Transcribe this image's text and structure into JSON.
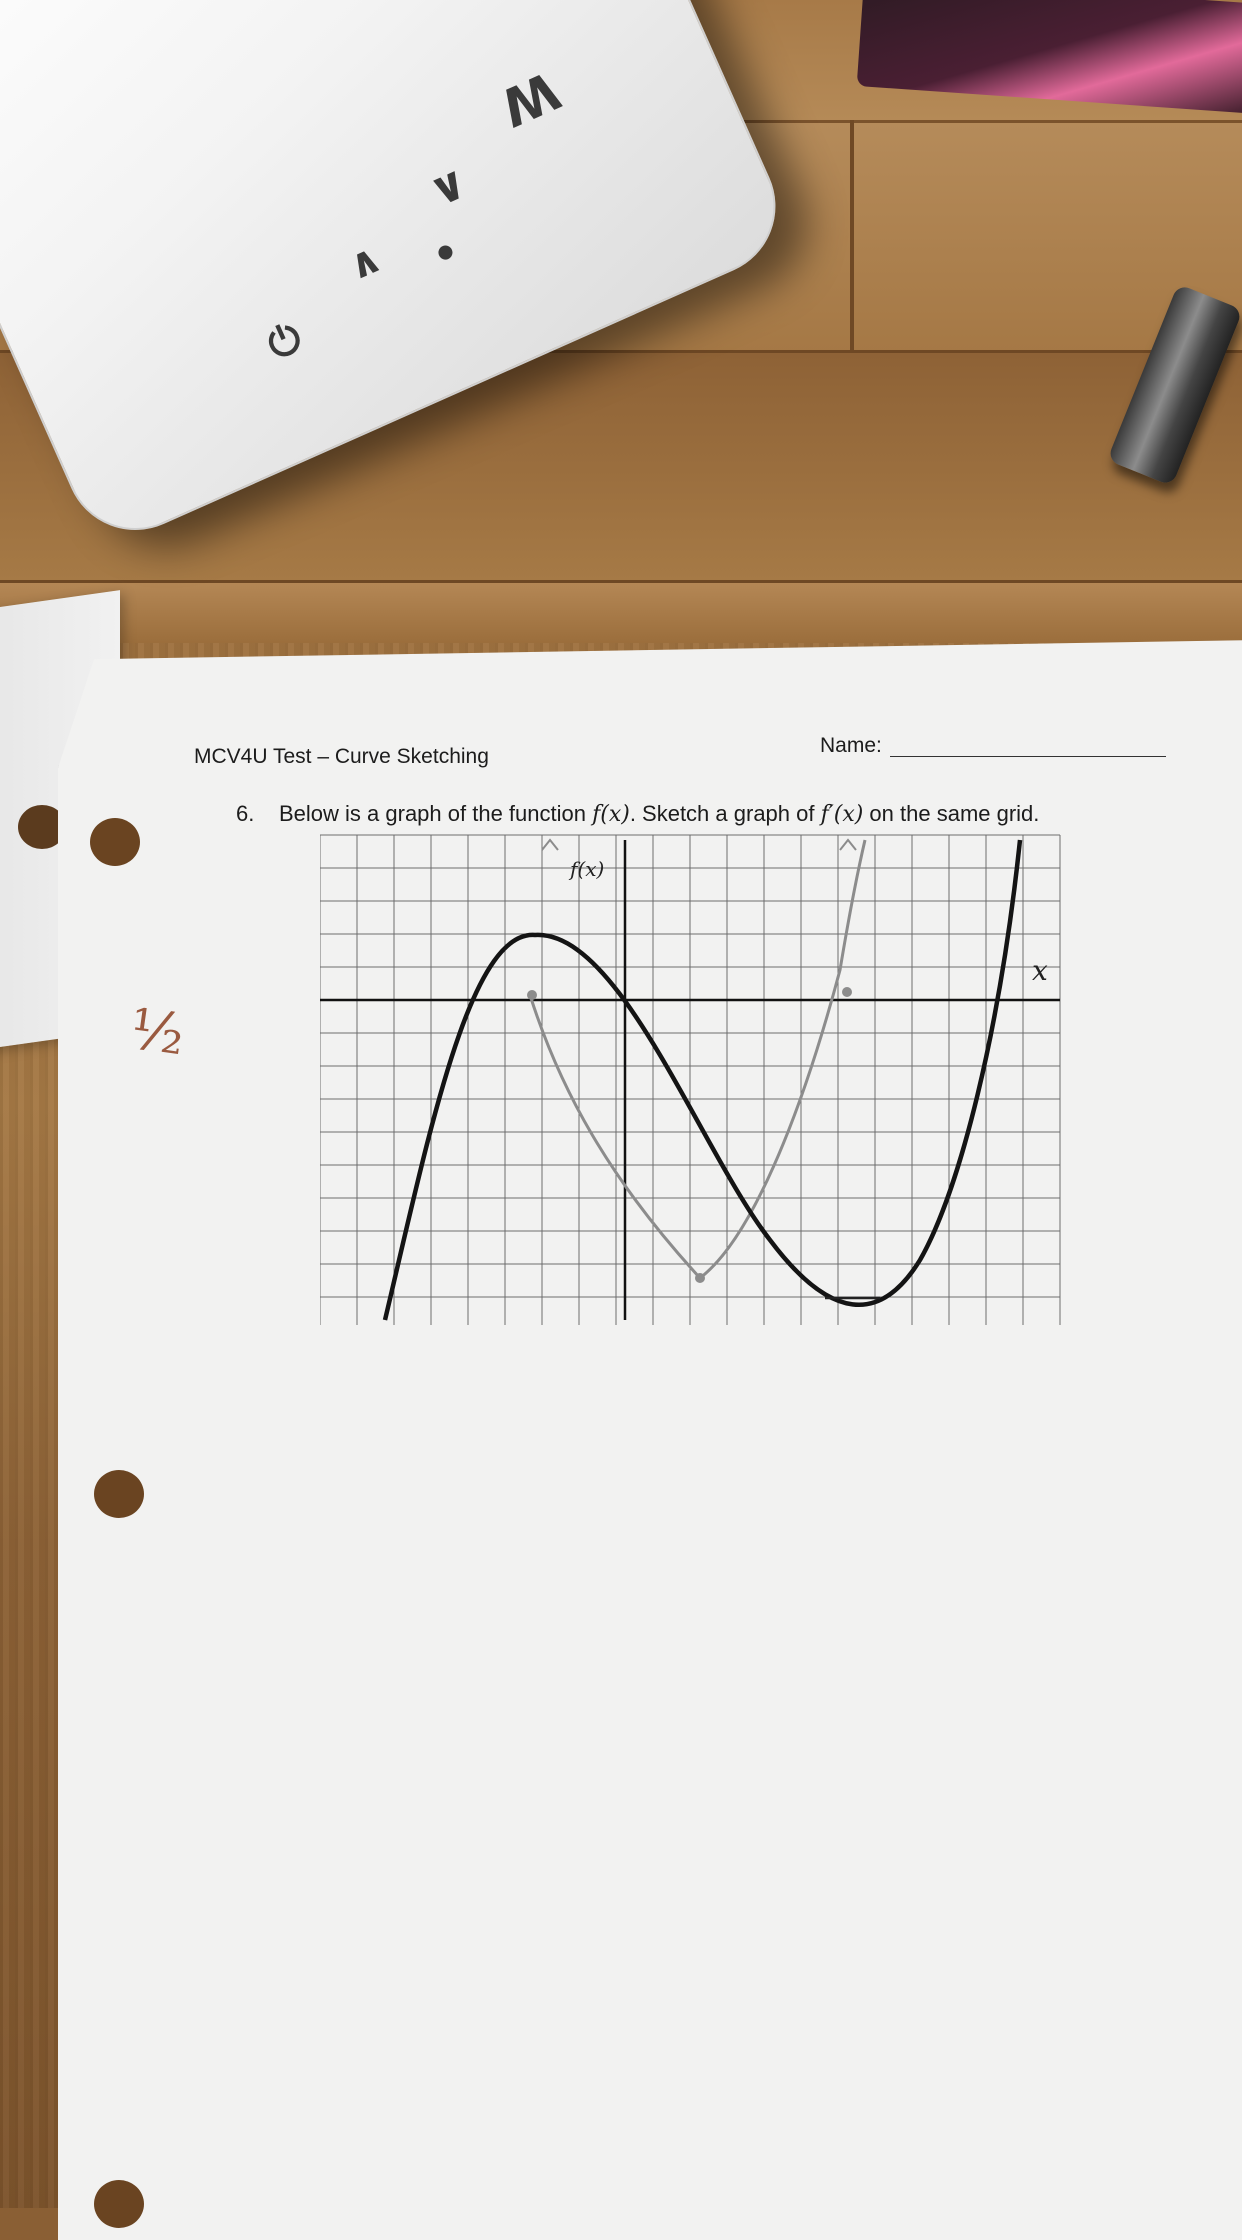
{
  "router": {
    "button_icons": [
      "power-icon",
      "up-chevron-icon",
      "down-chevron-icon",
      "dot-icon",
      "wifi-w-icon"
    ],
    "glyphs": {
      "power": "⏻",
      "up": "∧",
      "down": "∨",
      "m": "W"
    },
    "color": "#f4f4f4"
  },
  "worksheet": {
    "title": "MCV4U Test – Curve Sketching",
    "name_label": "Name:",
    "question_number": "6.",
    "question_text_pre": "Below is a graph of the function ",
    "fx": "f(x)",
    "question_text_mid": ". Sketch a graph of ",
    "fpx": "f′(x)",
    "question_text_post": " on the same grid.",
    "graph_label_fx": "f(x)",
    "graph_label_x": "x",
    "grade_mark": "½"
  },
  "colors": {
    "paper": "#f2f2f1",
    "printed_curve": "#141414",
    "pencil_curve": "#8c8c8c",
    "grid": "#6d6d6d",
    "ink_mark": "#9a5a40"
  }
}
